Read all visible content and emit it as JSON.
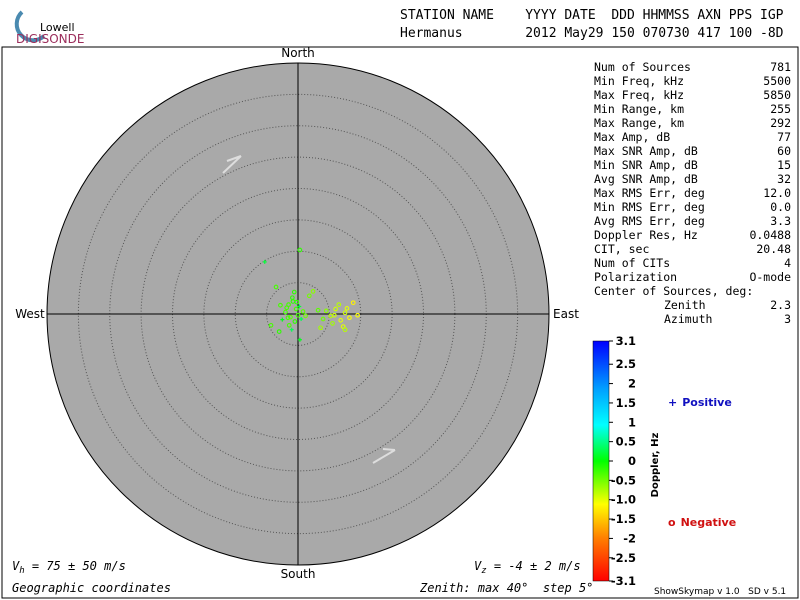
{
  "logo": {
    "top": "Lowell",
    "bottom": "DIGISONDE"
  },
  "header": {
    "line1": "STATION NAME    YYYY DATE  DDD HHMMSS AXN PPS IGP",
    "line2": "Hermanus        2012 May29 150 070730 417 100 -8D"
  },
  "chart_data": {
    "type": "scatter",
    "directions": {
      "north": "North",
      "south": "South",
      "east": "East",
      "west": "West"
    },
    "rlim": [
      0,
      40
    ],
    "rticks": [
      5,
      10,
      15,
      20,
      25,
      30,
      35
    ],
    "grid": true,
    "series": [
      {
        "x": [
          -1.5,
          -0.8,
          -0.3,
          0.2,
          -1.2,
          -2.0,
          -0.5,
          0.5,
          -1.8,
          -0.9,
          0.0,
          -2.5,
          -1.4,
          0.8,
          -0.2,
          -1.0,
          -2.8,
          1.2,
          -0.6,
          -1.6,
          4.5,
          5.2,
          6.0,
          6.8,
          7.5,
          8.2,
          5.5,
          6.5,
          7.2,
          8.8,
          4.0,
          3.2,
          5.8,
          7.8,
          9.5,
          -5.3,
          0.3,
          -4.3,
          7.5,
          0.3,
          -3.5,
          2.4,
          -3.0,
          1.8,
          3.6
        ],
        "y": [
          1.5,
          2.0,
          0.8,
          1.2,
          -0.5,
          0.3,
          -1.2,
          -0.8,
          1.0,
          2.6,
          -0.2,
          -0.9,
          -1.8,
          0.4,
          1.9,
          -2.5,
          1.4,
          -0.3,
          3.5,
          -0.6,
          0.5,
          -0.3,
          0.8,
          -1.0,
          0.2,
          -0.6,
          -1.5,
          1.5,
          -2.0,
          1.8,
          -0.8,
          0.6,
          -0.2,
          0.9,
          -0.2,
          8.3,
          10.2,
          -1.8,
          -2.5,
          -4.1,
          4.3,
          3.6,
          -2.8,
          2.9,
          -2.2
        ],
        "doppler": [
          -0.3,
          -0.2,
          -0.3,
          0.2,
          -0.4,
          -0.3,
          -0.2,
          0.3,
          -0.3,
          -0.2,
          -0.3,
          0.1,
          -0.3,
          -0.4,
          -0.2,
          0.3,
          -0.3,
          -0.5,
          -0.2,
          -0.3,
          -0.6,
          -0.8,
          -0.9,
          -1.0,
          -0.9,
          -1.1,
          -0.7,
          -0.8,
          -1.0,
          -1.2,
          -0.5,
          -0.4,
          -0.9,
          -1.0,
          -1.1,
          0.2,
          -0.2,
          -0.3,
          -0.8,
          0.1,
          -0.3,
          -0.6,
          -0.2,
          -0.5,
          -0.7
        ]
      }
    ],
    "legend": [
      {
        "symbol": "+",
        "label": "Positive",
        "color": "#1010c0"
      },
      {
        "symbol": "o",
        "label": "Negative",
        "color": "#d01010"
      }
    ],
    "colorbar": {
      "label": "Doppler, Hz",
      "lim": [
        -3.1,
        3.1
      ],
      "ticks": [
        3.1,
        2.5,
        2,
        1.5,
        1,
        0.5,
        0,
        -0.5,
        {
          "value": -1,
          "label": "-1.0"
        },
        -1.5,
        -2,
        -2.5,
        -3.1
      ]
    }
  },
  "annotations": {
    "vh": {
      "symbol": "V",
      "sub": "h",
      "text": " = 75 ± 50 m/s"
    },
    "vz": {
      "symbol": "V",
      "sub": "z",
      "text": " = -4 ± 2 m/s"
    },
    "coords": "Geographic coordinates",
    "zenith": "Zenith: max 40°  step 5°"
  },
  "stats": {
    "rows": [
      [
        "Num of Sources",
        "781"
      ],
      [
        "Min Freq, kHz",
        "5500"
      ],
      [
        "Max Freq, kHz",
        "5850"
      ],
      [
        "Min Range, km",
        "255"
      ],
      [
        "Max Range, km",
        "292"
      ],
      [
        "Max Amp, dB",
        "77"
      ],
      [
        "Max SNR Amp, dB",
        "60"
      ],
      [
        "Min SNR Amp, dB",
        "15"
      ],
      [
        "Avg SNR Amp, dB",
        "32"
      ],
      [
        "Max RMS Err, deg",
        "12.0"
      ],
      [
        "Min RMS Err, deg",
        "0.0"
      ],
      [
        "Avg RMS Err, deg",
        "3.3"
      ],
      [
        "Doppler Res, Hz",
        "0.0488"
      ],
      [
        "CIT, sec",
        "20.48"
      ],
      [
        "Num of CITs",
        "4"
      ],
      [
        "Polarization",
        "O-mode"
      ]
    ],
    "center": {
      "label": "Center of Sources, deg:",
      "rows": [
        [
          "Zenith",
          "2.3"
        ],
        [
          "Azimuth",
          "3"
        ]
      ]
    }
  },
  "footer": "ShowSkymap v 1.0   SD v 5.1"
}
